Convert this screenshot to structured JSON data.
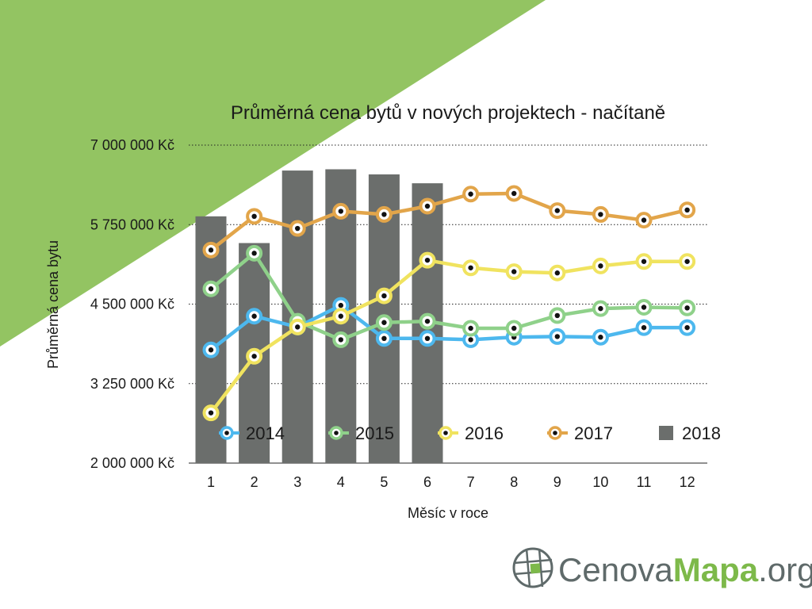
{
  "chart_data": {
    "type": "line",
    "title": "Průměrná cena bytů v nových projektech - načítaně",
    "xlabel": "Měsíc v roce",
    "ylabel": "Průměrná cena bytu",
    "categories": [
      "1",
      "2",
      "3",
      "4",
      "5",
      "6",
      "7",
      "8",
      "9",
      "10",
      "11",
      "12"
    ],
    "y_ticks": [
      "2 000 000 Kč",
      "3 250 000 Kč",
      "4 500 000 Kč",
      "5 750 000 Kč",
      "7 000 000 Kč"
    ],
    "y_tick_values": [
      2000000,
      3250000,
      4500000,
      5750000,
      7000000
    ],
    "ylim": [
      2000000,
      7000000
    ],
    "grid": "horizontal dotted",
    "legend_position": "inside-bottom",
    "bar_series": {
      "name": "2018",
      "color": "#6b6e6c",
      "values": [
        5880000,
        5460000,
        6600000,
        6620000,
        6540000,
        6400000
      ]
    },
    "series": [
      {
        "name": "2014",
        "color": "#4db8ee",
        "values": [
          3780000,
          4310000,
          4140000,
          4480000,
          3960000,
          3960000,
          3940000,
          3980000,
          3990000,
          3980000,
          4130000,
          4130000
        ]
      },
      {
        "name": "2015",
        "color": "#8fd18a",
        "values": [
          4740000,
          5300000,
          4230000,
          3940000,
          4210000,
          4230000,
          4120000,
          4120000,
          4320000,
          4430000,
          4450000,
          4440000
        ]
      },
      {
        "name": "2016",
        "color": "#f0e35f",
        "values": [
          2790000,
          3680000,
          4140000,
          4310000,
          4630000,
          5190000,
          5070000,
          5010000,
          4990000,
          5100000,
          5170000,
          5170000
        ]
      },
      {
        "name": "2017",
        "color": "#e2a54a",
        "values": [
          5350000,
          5880000,
          5690000,
          5960000,
          5910000,
          6040000,
          6230000,
          6240000,
          5970000,
          5910000,
          5820000,
          5980000
        ]
      }
    ]
  },
  "background": {
    "accent_color": "#93c462"
  },
  "logo": {
    "icon": "globe-grid-icon",
    "part1": "Cenova",
    "part2": "Mapa",
    "part3": ".org",
    "colors": {
      "gray": "#5f6a6a",
      "green": "#7db94a"
    }
  }
}
